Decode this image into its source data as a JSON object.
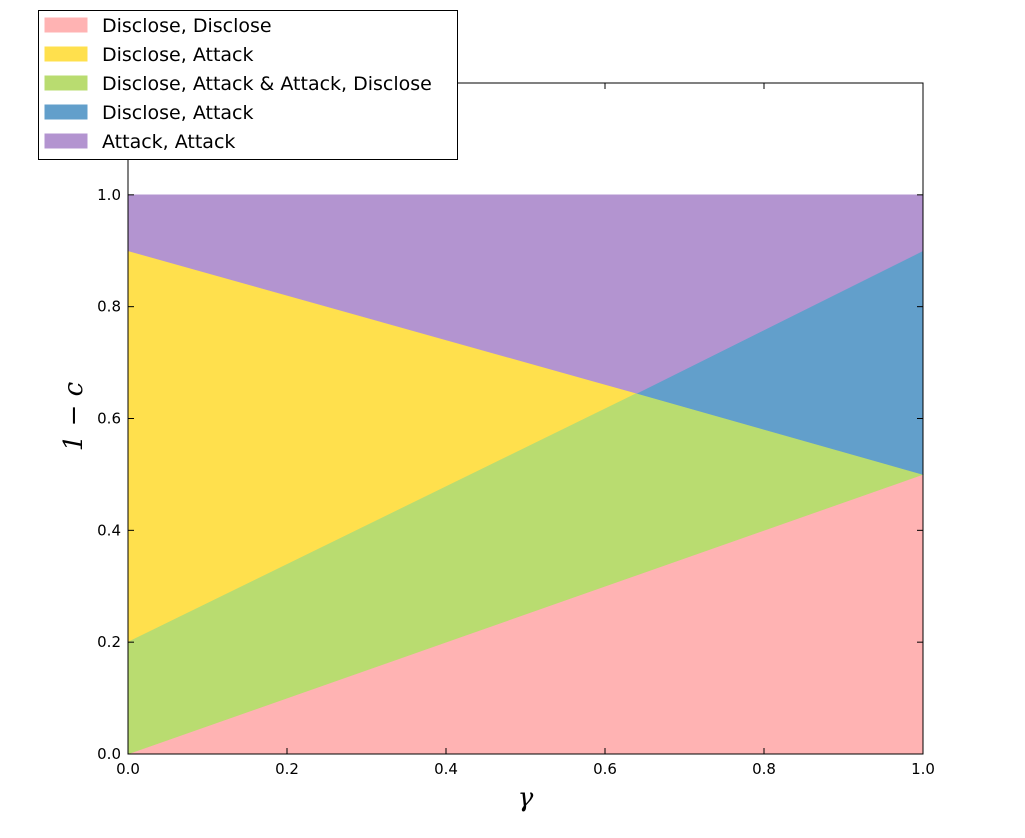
{
  "chart_data": {
    "type": "area",
    "xlabel": "γ",
    "ylabel": "1 − c",
    "xlim": [
      0.0,
      1.0
    ],
    "ylim": [
      0.0,
      1.2
    ],
    "x_ticks": [
      "0.0",
      "0.2",
      "0.4",
      "0.6",
      "0.8",
      "1.0"
    ],
    "y_ticks": [
      "0.0",
      "0.2",
      "0.4",
      "0.6",
      "0.8",
      "1.0"
    ],
    "grid": false,
    "legend_position": "top-left",
    "regions": [
      {
        "name": "Disclose, Disclose",
        "color": "#ffb3b3",
        "polygon": [
          [
            0.0,
            0.0
          ],
          [
            1.0,
            0.5
          ],
          [
            1.0,
            0.0
          ]
        ]
      },
      {
        "name": "Disclose, Attack",
        "color": "#ffe04d",
        "polygon": [
          [
            0.0,
            0.9
          ],
          [
            0.64,
            0.645
          ],
          [
            0.0,
            0.2
          ]
        ]
      },
      {
        "name": "Disclose, Attack & Attack, Disclose",
        "color": "#b9dc70",
        "polygon": [
          [
            0.0,
            0.2
          ],
          [
            0.64,
            0.645
          ],
          [
            1.0,
            0.5
          ],
          [
            0.0,
            0.0
          ]
        ]
      },
      {
        "name": "Disclose, Attack",
        "color": "#629fcb",
        "polygon": [
          [
            0.64,
            0.645
          ],
          [
            1.0,
            0.9
          ],
          [
            1.0,
            0.5
          ]
        ]
      },
      {
        "name": "Attack, Attack",
        "color": "#b394d0",
        "polygon": [
          [
            0.0,
            1.0
          ],
          [
            1.0,
            1.0
          ],
          [
            1.0,
            0.9
          ],
          [
            0.64,
            0.645
          ],
          [
            0.0,
            0.9
          ]
        ]
      }
    ]
  }
}
